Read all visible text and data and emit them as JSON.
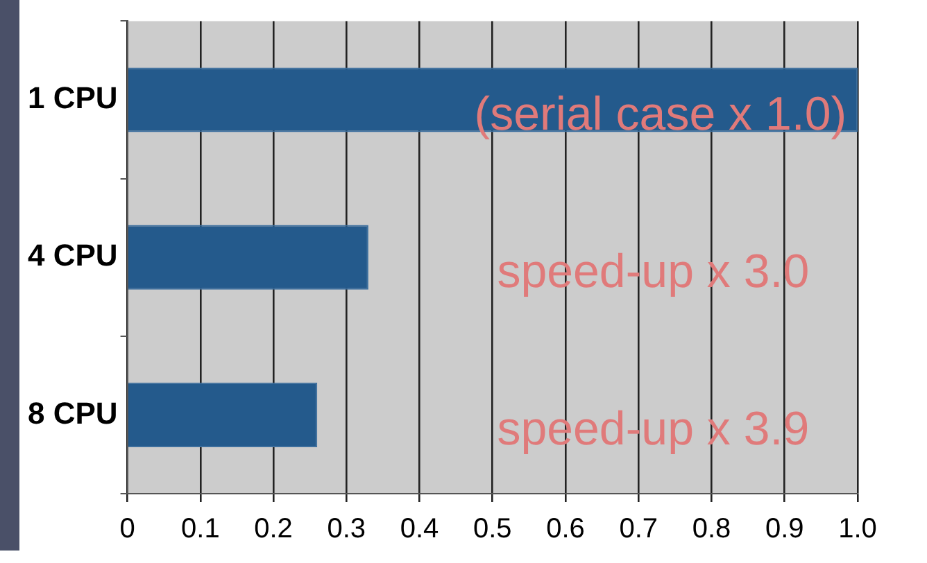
{
  "chart_data": {
    "type": "bar",
    "orientation": "horizontal",
    "categories": [
      "1 CPU",
      "4 CPU",
      "8 CPU"
    ],
    "values": [
      1.0,
      0.33,
      0.26
    ],
    "color": "#245a8c",
    "xlim": [
      0,
      1
    ],
    "xticks": [
      0,
      0.1,
      0.2,
      0.3,
      0.4,
      0.5,
      0.6,
      0.7,
      0.8,
      0.9,
      {
        "value": 1,
        "label": "1.0"
      }
    ],
    "grid": "x",
    "legend": false,
    "annotations": [
      "(serial case x 1.0)",
      "speed-up x 3.0",
      "speed-up x 3.9"
    ]
  }
}
